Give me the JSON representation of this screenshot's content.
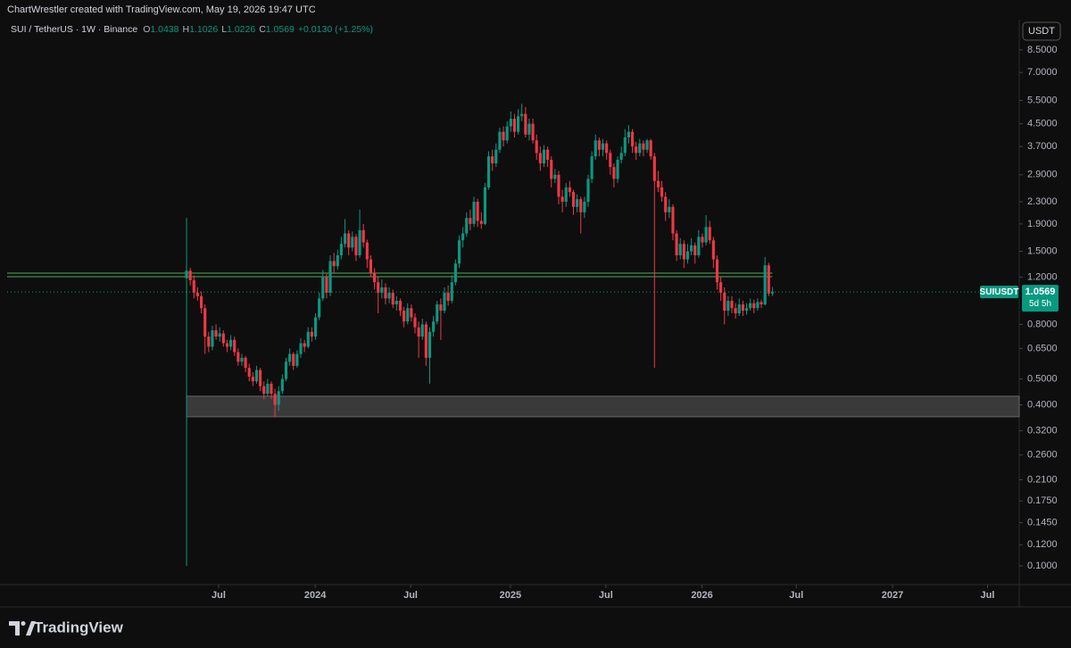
{
  "header": {
    "credit": "ChartWrestler created with TradingView.com, May 19, 2026 19:47 UTC"
  },
  "footer": {
    "brand": "TradingView"
  },
  "chart_data": {
    "type": "candlestick",
    "symbol": "SUI / TetherUS · 1W · Binance",
    "legend_keys": [
      "O",
      "H",
      "L",
      "C"
    ],
    "change": "+0.0130 (+1.25%)",
    "currency": "USDT",
    "ticker_tag": "SUIUSDT",
    "countdown": "5d 5h",
    "up_color": "#089981",
    "down_color": "#f23645",
    "log_scale": true,
    "grid": false,
    "levels": [
      1.206,
      1.244
    ],
    "level_color": "#4caf50",
    "zone": [
      0.361,
      0.431
    ],
    "zone_color": "#3a3a3a",
    "ylim": [
      0.0851,
      11.03
    ],
    "yticks": [
      {
        "value": 8.5,
        "label": "8.5000"
      },
      {
        "value": 7,
        "label": "7.0000"
      },
      {
        "value": 5.5,
        "label": "5.5000"
      },
      {
        "value": 4.5,
        "label": "4.5000"
      },
      {
        "value": 3.7,
        "label": "3.7000"
      },
      {
        "value": 2.9,
        "label": "2.9000"
      },
      {
        "value": 2.3,
        "label": "2.3000"
      },
      {
        "value": 1.9,
        "label": "1.9000"
      },
      {
        "value": 1.5,
        "label": "1.5000"
      },
      {
        "value": 1.2,
        "label": "1.2000"
      },
      {
        "value": 0.8,
        "label": "0.8000"
      },
      {
        "value": 0.65,
        "label": "0.6500"
      },
      {
        "value": 0.5,
        "label": "0.5000"
      },
      {
        "value": 0.4,
        "label": "0.4000"
      },
      {
        "value": 0.32,
        "label": "0.3200"
      },
      {
        "value": 0.26,
        "label": "0.2600"
      },
      {
        "value": 0.21,
        "label": "0.2100"
      },
      {
        "value": 0.175,
        "label": "0.1750"
      },
      {
        "value": 0.145,
        "label": "0.1450"
      },
      {
        "value": 0.12,
        "label": "0.1200"
      },
      {
        "value": 0.1,
        "label": "0.1000"
      }
    ],
    "xlim": [
      -48.7,
      226
    ],
    "xticks": [
      {
        "value": 8.7,
        "label": "Jul"
      },
      {
        "value": 34.9,
        "label": "2024"
      },
      {
        "value": 60.8,
        "label": "Jul"
      },
      {
        "value": 87.9,
        "label": "2025"
      },
      {
        "value": 113.8,
        "label": "Jul"
      },
      {
        "value": 139.9,
        "label": "2026"
      },
      {
        "value": 165.5,
        "label": "Jul"
      },
      {
        "value": 191.6,
        "label": "2027"
      },
      {
        "value": 217.4,
        "label": "Jul"
      }
    ],
    "ohlc": [
      [
        1.19,
        2.0,
        0.1,
        1.27
      ],
      [
        1.27,
        1.3,
        1.12,
        1.17
      ],
      [
        1.17,
        1.22,
        1.0,
        1.05
      ],
      [
        1.05,
        1.1,
        0.98,
        1.02
      ],
      [
        1.02,
        1.06,
        0.88,
        0.92
      ],
      [
        0.92,
        0.95,
        0.62,
        0.72
      ],
      [
        0.72,
        0.75,
        0.63,
        0.66
      ],
      [
        0.66,
        0.79,
        0.64,
        0.76
      ],
      [
        0.76,
        0.8,
        0.7,
        0.72
      ],
      [
        0.72,
        0.78,
        0.69,
        0.74
      ],
      [
        0.74,
        0.76,
        0.66,
        0.68
      ],
      [
        0.68,
        0.7,
        0.63,
        0.66
      ],
      [
        0.66,
        0.73,
        0.64,
        0.7
      ],
      [
        0.7,
        0.72,
        0.61,
        0.63
      ],
      [
        0.63,
        0.65,
        0.56,
        0.58
      ],
      [
        0.58,
        0.62,
        0.56,
        0.6
      ],
      [
        0.6,
        0.61,
        0.53,
        0.55
      ],
      [
        0.55,
        0.57,
        0.49,
        0.51
      ],
      [
        0.51,
        0.53,
        0.47,
        0.49
      ],
      [
        0.49,
        0.56,
        0.48,
        0.54
      ],
      [
        0.54,
        0.55,
        0.45,
        0.47
      ],
      [
        0.47,
        0.49,
        0.42,
        0.44
      ],
      [
        0.44,
        0.5,
        0.43,
        0.48
      ],
      [
        0.48,
        0.49,
        0.42,
        0.44
      ],
      [
        0.44,
        0.46,
        0.36,
        0.4
      ],
      [
        0.4,
        0.47,
        0.38,
        0.45
      ],
      [
        0.45,
        0.52,
        0.44,
        0.5
      ],
      [
        0.5,
        0.6,
        0.49,
        0.58
      ],
      [
        0.58,
        0.65,
        0.56,
        0.62
      ],
      [
        0.62,
        0.63,
        0.54,
        0.56
      ],
      [
        0.56,
        0.64,
        0.55,
        0.62
      ],
      [
        0.62,
        0.71,
        0.6,
        0.68
      ],
      [
        0.68,
        0.7,
        0.63,
        0.66
      ],
      [
        0.66,
        0.78,
        0.65,
        0.75
      ],
      [
        0.75,
        0.78,
        0.69,
        0.72
      ],
      [
        0.72,
        0.88,
        0.7,
        0.85
      ],
      [
        0.85,
        1.05,
        0.83,
        1.0
      ],
      [
        1.0,
        1.28,
        0.98,
        1.2
      ],
      [
        1.2,
        1.25,
        1.0,
        1.05
      ],
      [
        1.05,
        1.45,
        1.02,
        1.38
      ],
      [
        1.38,
        1.48,
        1.25,
        1.32
      ],
      [
        1.32,
        1.52,
        1.28,
        1.45
      ],
      [
        1.45,
        1.7,
        1.4,
        1.6
      ],
      [
        1.6,
        1.98,
        1.55,
        1.75
      ],
      [
        1.75,
        1.8,
        1.45,
        1.55
      ],
      [
        1.55,
        1.78,
        1.5,
        1.7
      ],
      [
        1.7,
        1.74,
        1.38,
        1.45
      ],
      [
        1.45,
        2.15,
        1.42,
        1.8
      ],
      [
        1.8,
        1.9,
        1.55,
        1.62
      ],
      [
        1.62,
        1.66,
        1.3,
        1.4
      ],
      [
        1.4,
        1.45,
        1.2,
        1.25
      ],
      [
        1.25,
        1.3,
        1.08,
        1.15
      ],
      [
        1.15,
        1.2,
        0.88,
        1.05
      ],
      [
        1.05,
        1.18,
        1.0,
        1.1
      ],
      [
        1.1,
        1.14,
        0.95,
        1.0
      ],
      [
        1.0,
        1.1,
        0.96,
        1.05
      ],
      [
        1.05,
        1.08,
        0.92,
        0.95
      ],
      [
        0.95,
        1.02,
        0.9,
        0.98
      ],
      [
        0.98,
        1.0,
        0.86,
        0.9
      ],
      [
        0.9,
        0.93,
        0.78,
        0.82
      ],
      [
        0.82,
        0.96,
        0.8,
        0.92
      ],
      [
        0.92,
        0.95,
        0.82,
        0.85
      ],
      [
        0.85,
        0.88,
        0.74,
        0.78
      ],
      [
        0.78,
        0.82,
        0.6,
        0.72
      ],
      [
        0.72,
        0.84,
        0.7,
        0.8
      ],
      [
        0.8,
        0.82,
        0.56,
        0.6
      ],
      [
        0.6,
        0.78,
        0.48,
        0.75
      ],
      [
        0.75,
        0.86,
        0.72,
        0.82
      ],
      [
        0.82,
        0.98,
        0.8,
        0.95
      ],
      [
        0.95,
        1.0,
        0.7,
        0.9
      ],
      [
        0.9,
        1.1,
        0.88,
        1.05
      ],
      [
        1.05,
        1.12,
        0.94,
        0.98
      ],
      [
        0.98,
        1.22,
        0.96,
        1.15
      ],
      [
        1.15,
        1.4,
        1.12,
        1.35
      ],
      [
        1.35,
        1.72,
        1.3,
        1.65
      ],
      [
        1.65,
        1.85,
        1.55,
        1.75
      ],
      [
        1.75,
        2.1,
        1.7,
        2.0
      ],
      [
        2.0,
        2.15,
        1.8,
        1.9
      ],
      [
        1.9,
        2.4,
        1.85,
        2.3
      ],
      [
        2.3,
        2.36,
        1.85,
        1.95
      ],
      [
        1.95,
        2.1,
        1.82,
        1.9
      ],
      [
        1.9,
        2.7,
        1.88,
        2.6
      ],
      [
        2.6,
        3.55,
        2.55,
        3.4
      ],
      [
        3.4,
        3.6,
        3.0,
        3.2
      ],
      [
        3.2,
        3.8,
        3.1,
        3.6
      ],
      [
        3.6,
        4.35,
        3.5,
        4.2
      ],
      [
        4.2,
        4.4,
        3.7,
        3.9
      ],
      [
        3.9,
        4.6,
        3.8,
        4.4
      ],
      [
        4.4,
        5.0,
        4.2,
        4.7
      ],
      [
        4.7,
        4.9,
        4.0,
        4.2
      ],
      [
        4.2,
        5.1,
        4.1,
        4.8
      ],
      [
        4.8,
        5.35,
        4.6,
        4.9
      ],
      [
        4.9,
        5.2,
        4.0,
        4.1
      ],
      [
        4.1,
        4.7,
        3.9,
        4.5
      ],
      [
        4.5,
        4.7,
        3.8,
        3.9
      ],
      [
        3.9,
        4.1,
        3.3,
        3.5
      ],
      [
        3.5,
        3.7,
        3.0,
        3.2
      ],
      [
        3.2,
        3.75,
        3.1,
        3.6
      ],
      [
        3.6,
        3.7,
        3.1,
        3.3
      ],
      [
        3.3,
        3.4,
        2.6,
        2.8
      ],
      [
        2.8,
        3.05,
        2.7,
        2.9
      ],
      [
        2.9,
        3.0,
        2.25,
        2.4
      ],
      [
        2.4,
        2.55,
        2.1,
        2.3
      ],
      [
        2.3,
        2.7,
        2.2,
        2.6
      ],
      [
        2.6,
        2.75,
        2.4,
        2.5
      ],
      [
        2.5,
        2.55,
        2.05,
        2.2
      ],
      [
        2.2,
        2.45,
        2.1,
        2.35
      ],
      [
        2.35,
        2.4,
        1.75,
        2.1
      ],
      [
        2.1,
        2.4,
        2.0,
        2.3
      ],
      [
        2.3,
        2.9,
        2.2,
        2.8
      ],
      [
        2.8,
        3.55,
        2.7,
        3.4
      ],
      [
        3.4,
        4.1,
        3.3,
        3.9
      ],
      [
        3.9,
        4.0,
        3.4,
        3.6
      ],
      [
        3.6,
        3.95,
        3.4,
        3.8
      ],
      [
        3.8,
        3.9,
        3.3,
        3.5
      ],
      [
        3.5,
        3.6,
        2.9,
        3.1
      ],
      [
        3.1,
        3.2,
        2.6,
        2.8
      ],
      [
        2.8,
        3.4,
        2.7,
        3.3
      ],
      [
        3.3,
        3.7,
        3.2,
        3.5
      ],
      [
        3.5,
        4.3,
        3.4,
        4.0
      ],
      [
        4.0,
        4.45,
        3.8,
        4.2
      ],
      [
        4.2,
        4.3,
        3.5,
        3.7
      ],
      [
        3.7,
        3.85,
        3.3,
        3.5
      ],
      [
        3.5,
        3.95,
        3.4,
        3.8
      ],
      [
        3.8,
        3.9,
        3.4,
        3.6
      ],
      [
        3.6,
        3.95,
        3.5,
        3.9
      ],
      [
        3.9,
        3.95,
        3.3,
        3.4
      ],
      [
        3.4,
        3.5,
        0.55,
        2.75
      ],
      [
        2.75,
        3.0,
        2.5,
        2.6
      ],
      [
        2.6,
        2.75,
        2.3,
        2.4
      ],
      [
        2.4,
        2.5,
        1.95,
        2.1
      ],
      [
        2.1,
        2.35,
        2.0,
        2.2
      ],
      [
        2.2,
        2.25,
        1.65,
        1.75
      ],
      [
        1.75,
        1.8,
        1.38,
        1.45
      ],
      [
        1.45,
        1.68,
        1.4,
        1.6
      ],
      [
        1.6,
        1.65,
        1.3,
        1.4
      ],
      [
        1.4,
        1.6,
        1.35,
        1.5
      ],
      [
        1.5,
        1.68,
        1.45,
        1.58
      ],
      [
        1.58,
        1.62,
        1.35,
        1.45
      ],
      [
        1.45,
        1.8,
        1.42,
        1.7
      ],
      [
        1.7,
        1.75,
        1.55,
        1.62
      ],
      [
        1.62,
        2.05,
        1.58,
        1.85
      ],
      [
        1.85,
        1.95,
        1.6,
        1.65
      ],
      [
        1.65,
        1.7,
        1.3,
        1.4
      ],
      [
        1.4,
        1.45,
        1.08,
        1.15
      ],
      [
        1.15,
        1.2,
        0.98,
        1.05
      ],
      [
        1.05,
        1.1,
        0.8,
        0.9
      ],
      [
        0.9,
        1.02,
        0.86,
        0.98
      ],
      [
        0.98,
        1.02,
        0.88,
        0.92
      ],
      [
        0.92,
        0.96,
        0.84,
        0.88
      ],
      [
        0.88,
        1.0,
        0.86,
        0.95
      ],
      [
        0.95,
        0.98,
        0.86,
        0.9
      ],
      [
        0.9,
        0.96,
        0.87,
        0.92
      ],
      [
        0.92,
        1.0,
        0.9,
        0.96
      ],
      [
        0.96,
        0.99,
        0.88,
        0.92
      ],
      [
        0.92,
        1.0,
        0.9,
        0.97
      ],
      [
        0.97,
        0.99,
        0.92,
        0.95
      ],
      [
        0.95,
        1.43,
        0.94,
        1.33
      ],
      [
        1.33,
        1.36,
        1.02,
        1.0439
      ],
      [
        1.0438,
        1.1026,
        1.0226,
        1.0569
      ]
    ]
  }
}
